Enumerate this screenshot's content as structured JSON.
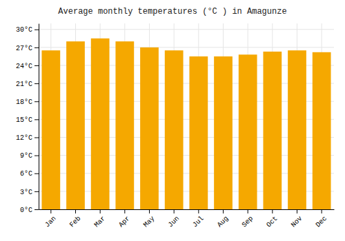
{
  "chart_data": {
    "type": "bar",
    "title": "Average monthly temperatures (°C ) in Amagunze",
    "categories": [
      "Jan",
      "Feb",
      "Mar",
      "Apr",
      "May",
      "Jun",
      "Jul",
      "Aug",
      "Sep",
      "Oct",
      "Nov",
      "Dec"
    ],
    "values": [
      26.5,
      28.0,
      28.5,
      28.0,
      27.0,
      26.5,
      25.5,
      25.5,
      25.8,
      26.3,
      26.5,
      26.2
    ],
    "color": "#F5A800",
    "ylim": [
      0,
      31
    ],
    "yticks": [
      {
        "value": 0,
        "label": "0°C"
      },
      {
        "value": 3,
        "label": "3°C"
      },
      {
        "value": 6,
        "label": "6°C"
      },
      {
        "value": 9,
        "label": "9°C"
      },
      {
        "value": 12,
        "label": "12°C"
      },
      {
        "value": 15,
        "label": "15°C"
      },
      {
        "value": 18,
        "label": "18°C"
      },
      {
        "value": 21,
        "label": "21°C"
      },
      {
        "value": 24,
        "label": "24°C"
      },
      {
        "value": 27,
        "label": "27°C"
      },
      {
        "value": 30,
        "label": "30°C"
      }
    ],
    "grid": true
  }
}
